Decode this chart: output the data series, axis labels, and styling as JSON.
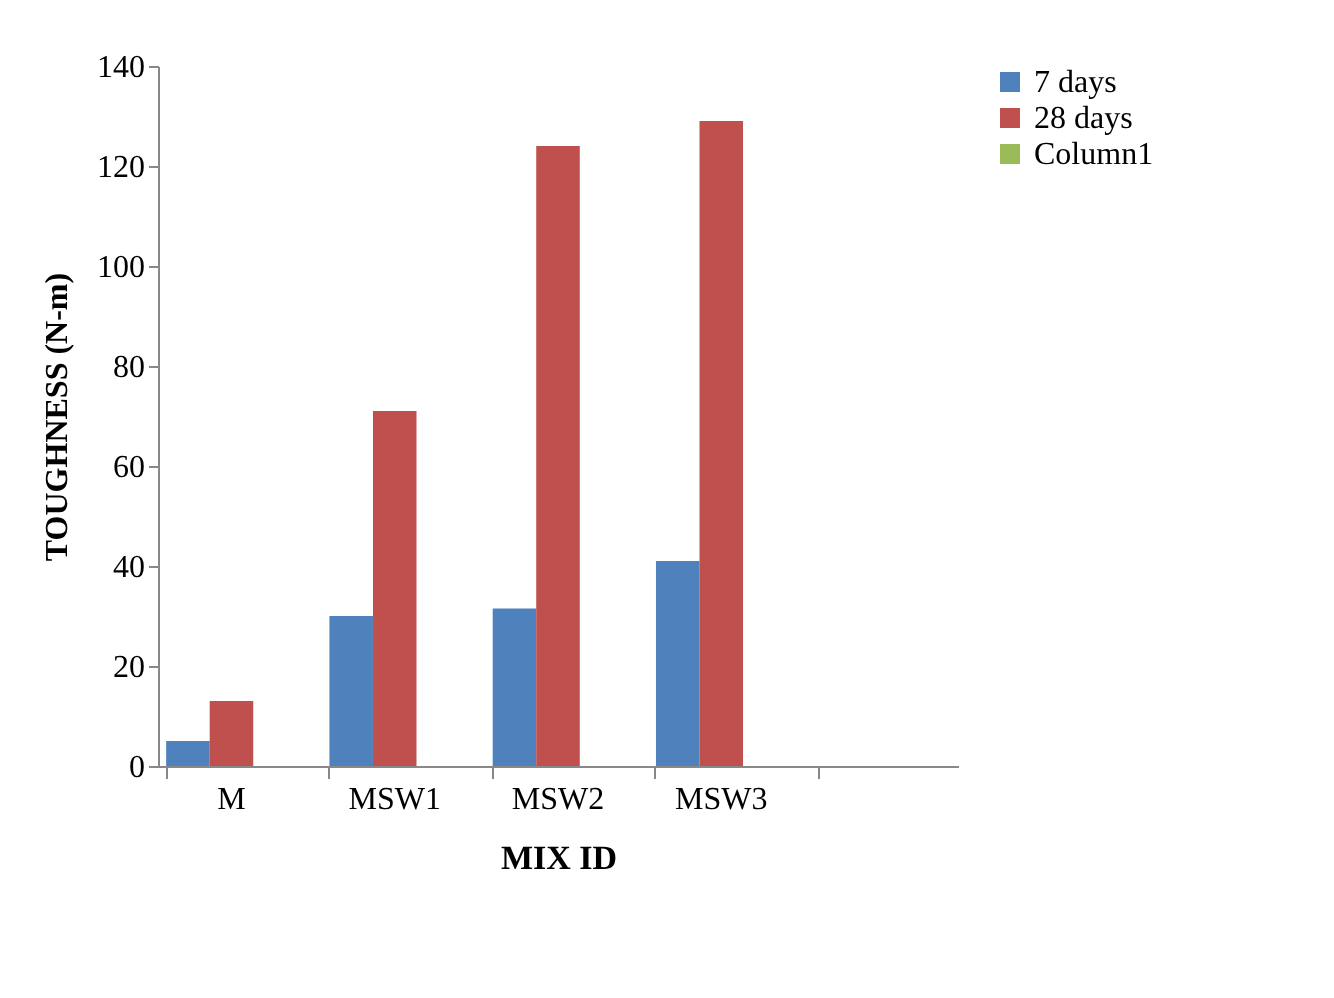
{
  "chart_data": {
    "type": "bar",
    "categories": [
      "M",
      "MSW1",
      "MSW2",
      "MSW3",
      null
    ],
    "xlabel": "MIX ID",
    "ylabel": "TOUGHNESS (N-m)",
    "series": [
      {
        "name": "7 days",
        "color": "#4f81bd",
        "values": [
          5,
          30,
          31.5,
          41,
          null
        ]
      },
      {
        "name": "28 days",
        "color": "#c0504d",
        "values": [
          13,
          71,
          124,
          129,
          null
        ]
      },
      {
        "name": "Column1",
        "color": "#9bbb59",
        "values": [
          null,
          null,
          null,
          null,
          null
        ]
      }
    ],
    "ylim": [
      0,
      140
    ],
    "yticks": [
      0,
      20,
      40,
      60,
      80,
      100,
      120,
      140
    ],
    "grid": false,
    "legend": "right"
  }
}
